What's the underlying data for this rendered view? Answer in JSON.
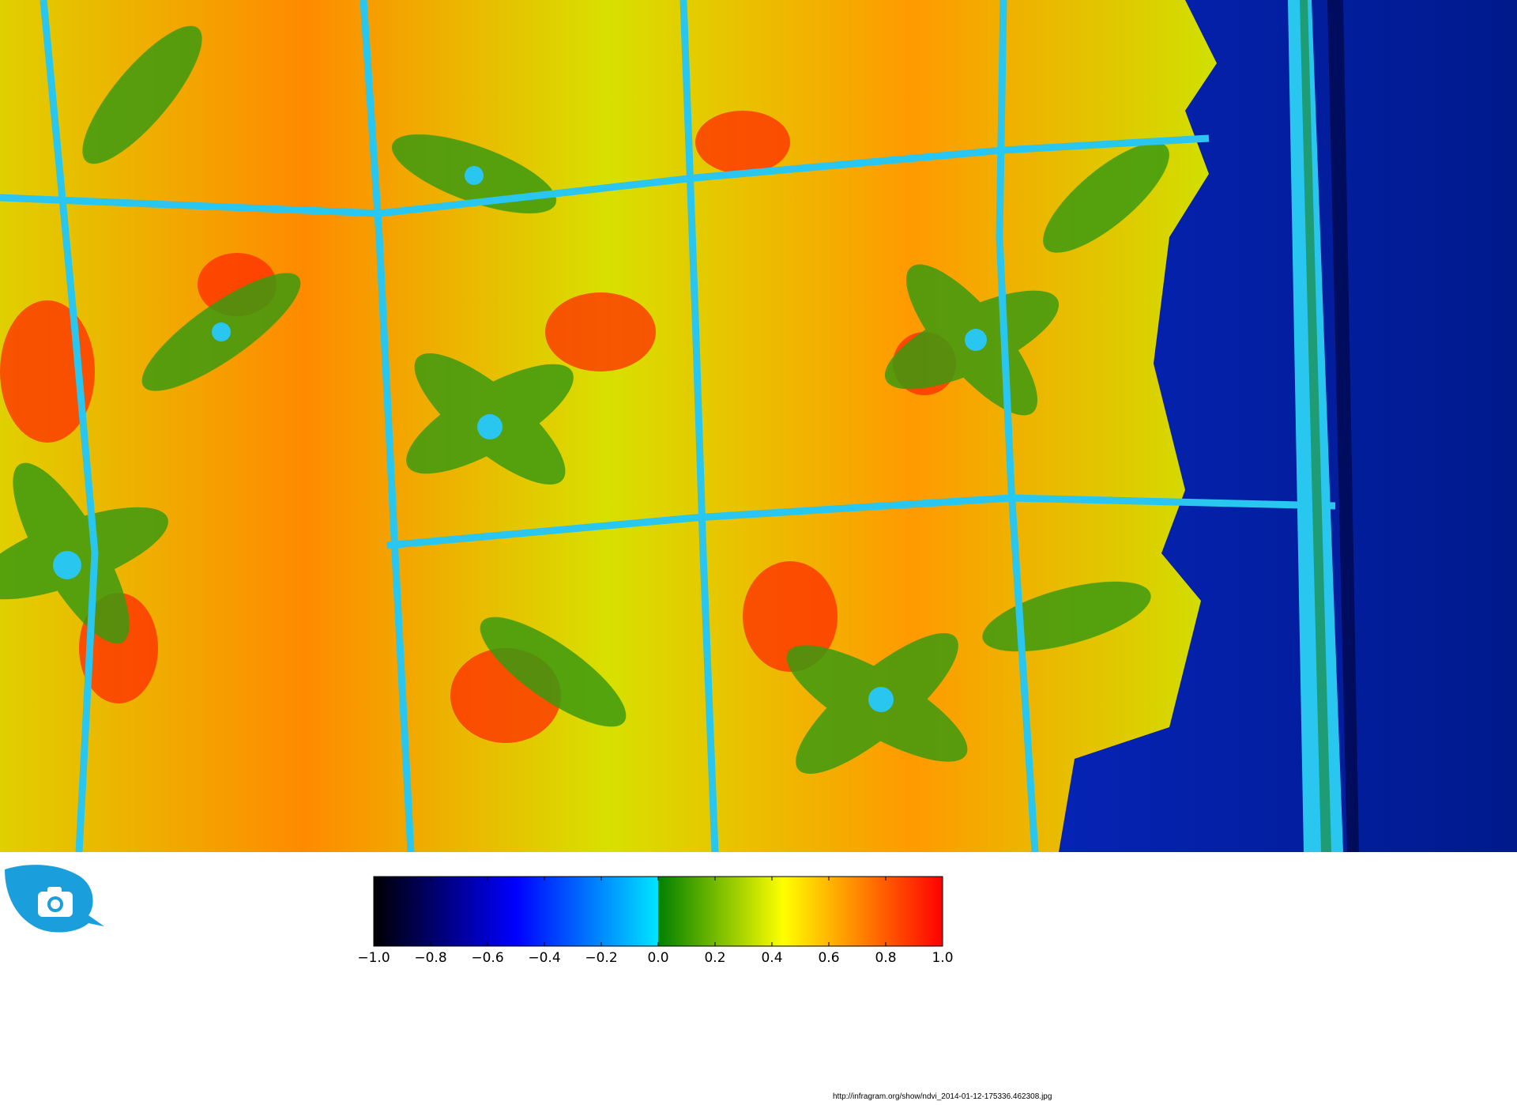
{
  "image": {
    "subject": "ndvi-false-color-canopy",
    "logo_icon": "camera-leaf-icon",
    "logo_color": "#1a9fdc"
  },
  "colorbar": {
    "colormap": [
      "#000000",
      "#0000ff",
      "#00e5ff",
      "#008000",
      "#ffff00",
      "#ff0000"
    ],
    "range": [
      -1.0,
      1.0
    ],
    "ticks": [
      "−1.0",
      "−0.8",
      "−0.6",
      "−0.4",
      "−0.2",
      "0.0",
      "0.2",
      "0.4",
      "0.6",
      "0.8",
      "1.0"
    ]
  },
  "footer": {
    "source_url": "http://infragram.org/show/ndvi_2014-01-12-175336.462308.jpg"
  }
}
